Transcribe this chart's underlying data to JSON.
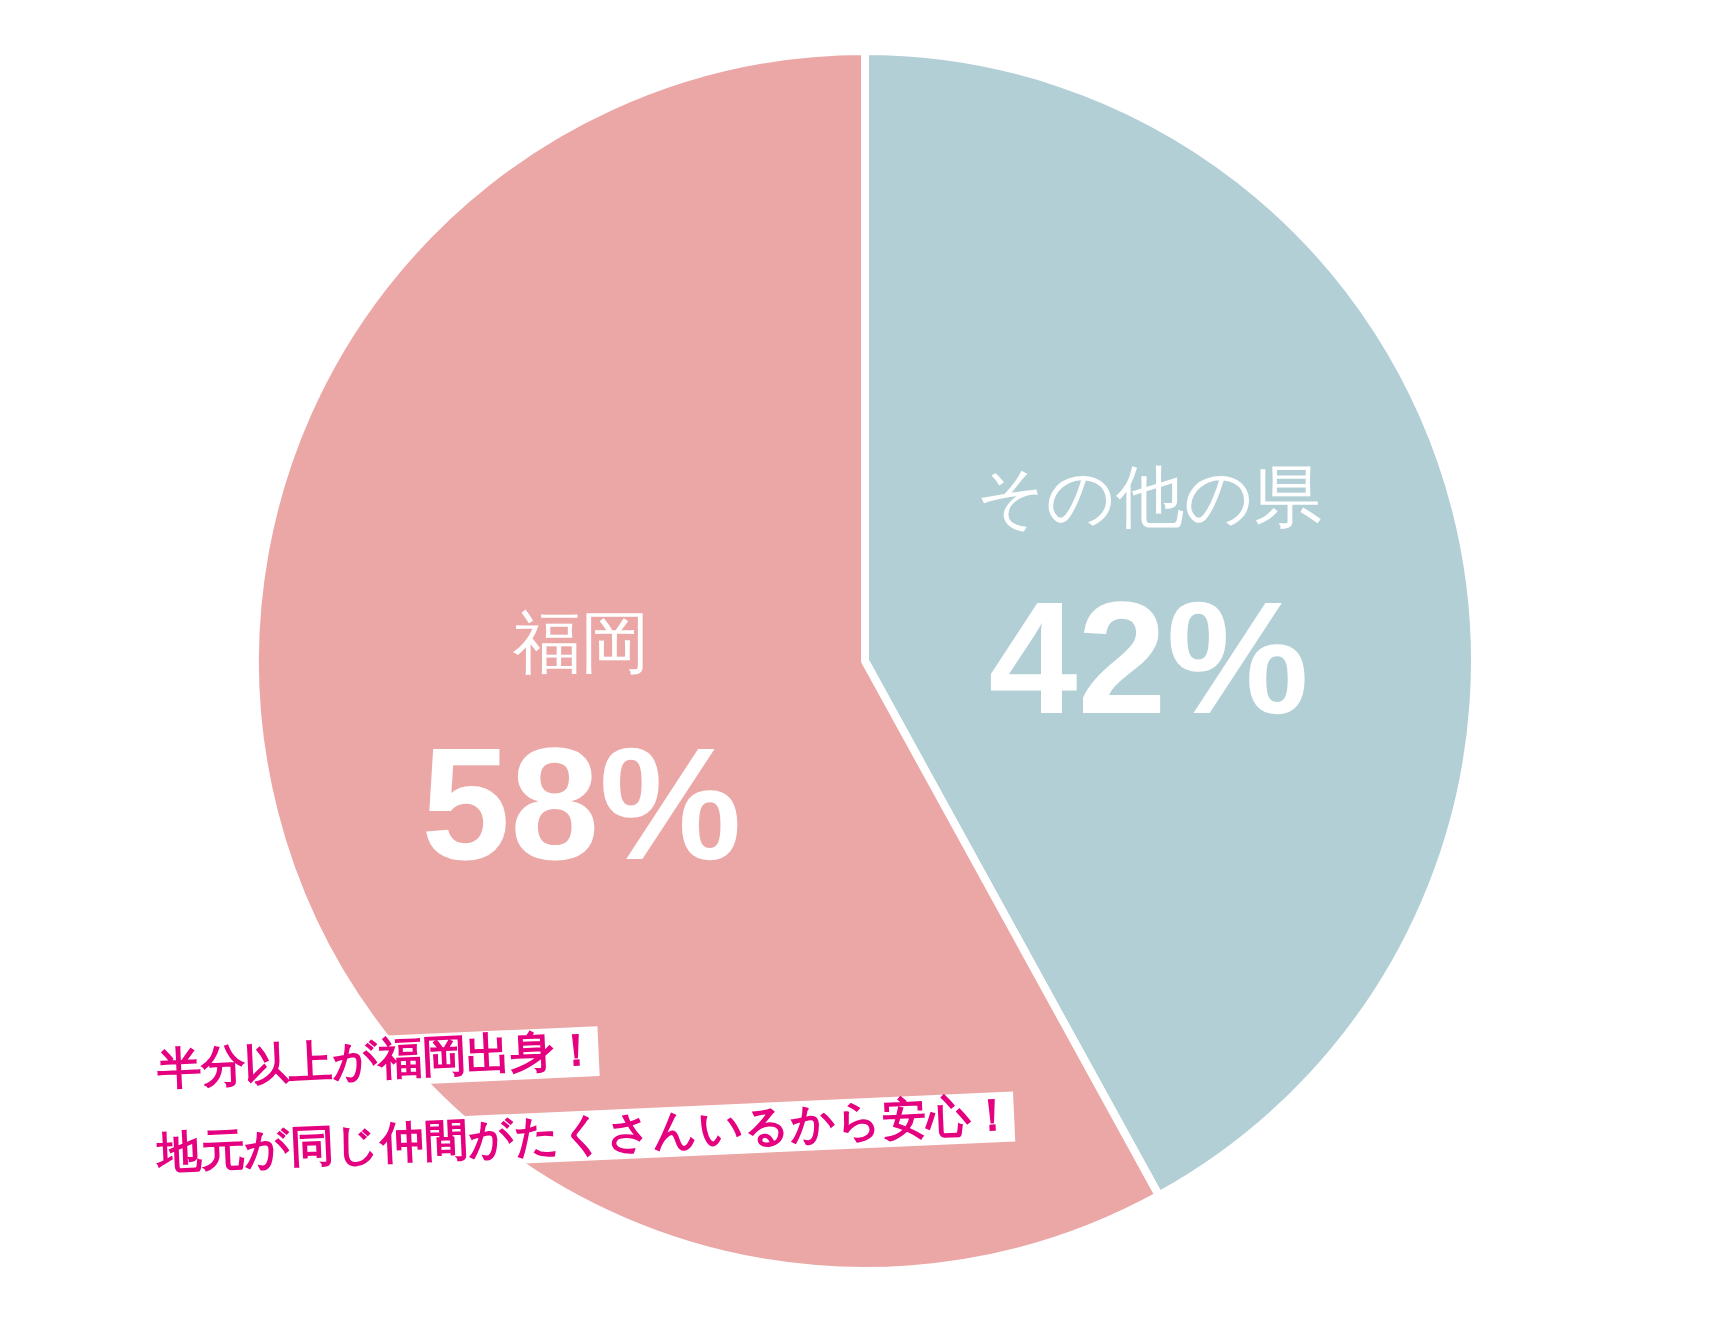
{
  "chart_data": {
    "type": "pie",
    "categories": [
      "その他の県",
      "福岡"
    ],
    "values": [
      42,
      58
    ],
    "colors": [
      "#b2cfd6",
      "#eba6a6"
    ],
    "value_labels": [
      "42%",
      "58%"
    ],
    "annotations": [
      "半分以上が福岡出身！",
      "地元が同じ仲間がたくさんいるから安心！"
    ]
  }
}
